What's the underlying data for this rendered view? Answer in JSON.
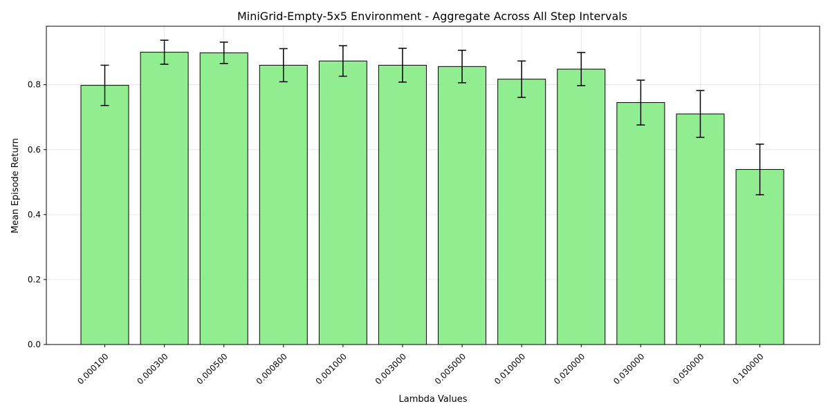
{
  "chart_data": {
    "type": "bar",
    "title": "MiniGrid-Empty-5x5 Environment - Aggregate Across All Step Intervals",
    "xlabel": "Lambda Values",
    "ylabel": "Mean Episode Return",
    "categories": [
      "0.000100",
      "0.000300",
      "0.000500",
      "0.000800",
      "0.001000",
      "0.003000",
      "0.005000",
      "0.010000",
      "0.020000",
      "0.030000",
      "0.050000",
      "0.100000"
    ],
    "values": [
      0.798,
      0.9,
      0.898,
      0.86,
      0.873,
      0.86,
      0.856,
      0.817,
      0.848,
      0.745,
      0.71,
      0.539
    ],
    "errors": [
      0.062,
      0.037,
      0.033,
      0.051,
      0.047,
      0.052,
      0.05,
      0.056,
      0.051,
      0.069,
      0.072,
      0.078
    ],
    "ylim": [
      0,
      0.98
    ],
    "yticks": [
      0.0,
      0.2,
      0.4,
      0.6,
      0.8
    ],
    "ytick_labels": [
      "0.0",
      "0.2",
      "0.4",
      "0.6",
      "0.8"
    ],
    "grid": true,
    "colors": {
      "bar_fill": "#90ee90",
      "bar_edge": "#000000",
      "grid": "#e6e6e6",
      "error_bar": "#000000"
    }
  }
}
